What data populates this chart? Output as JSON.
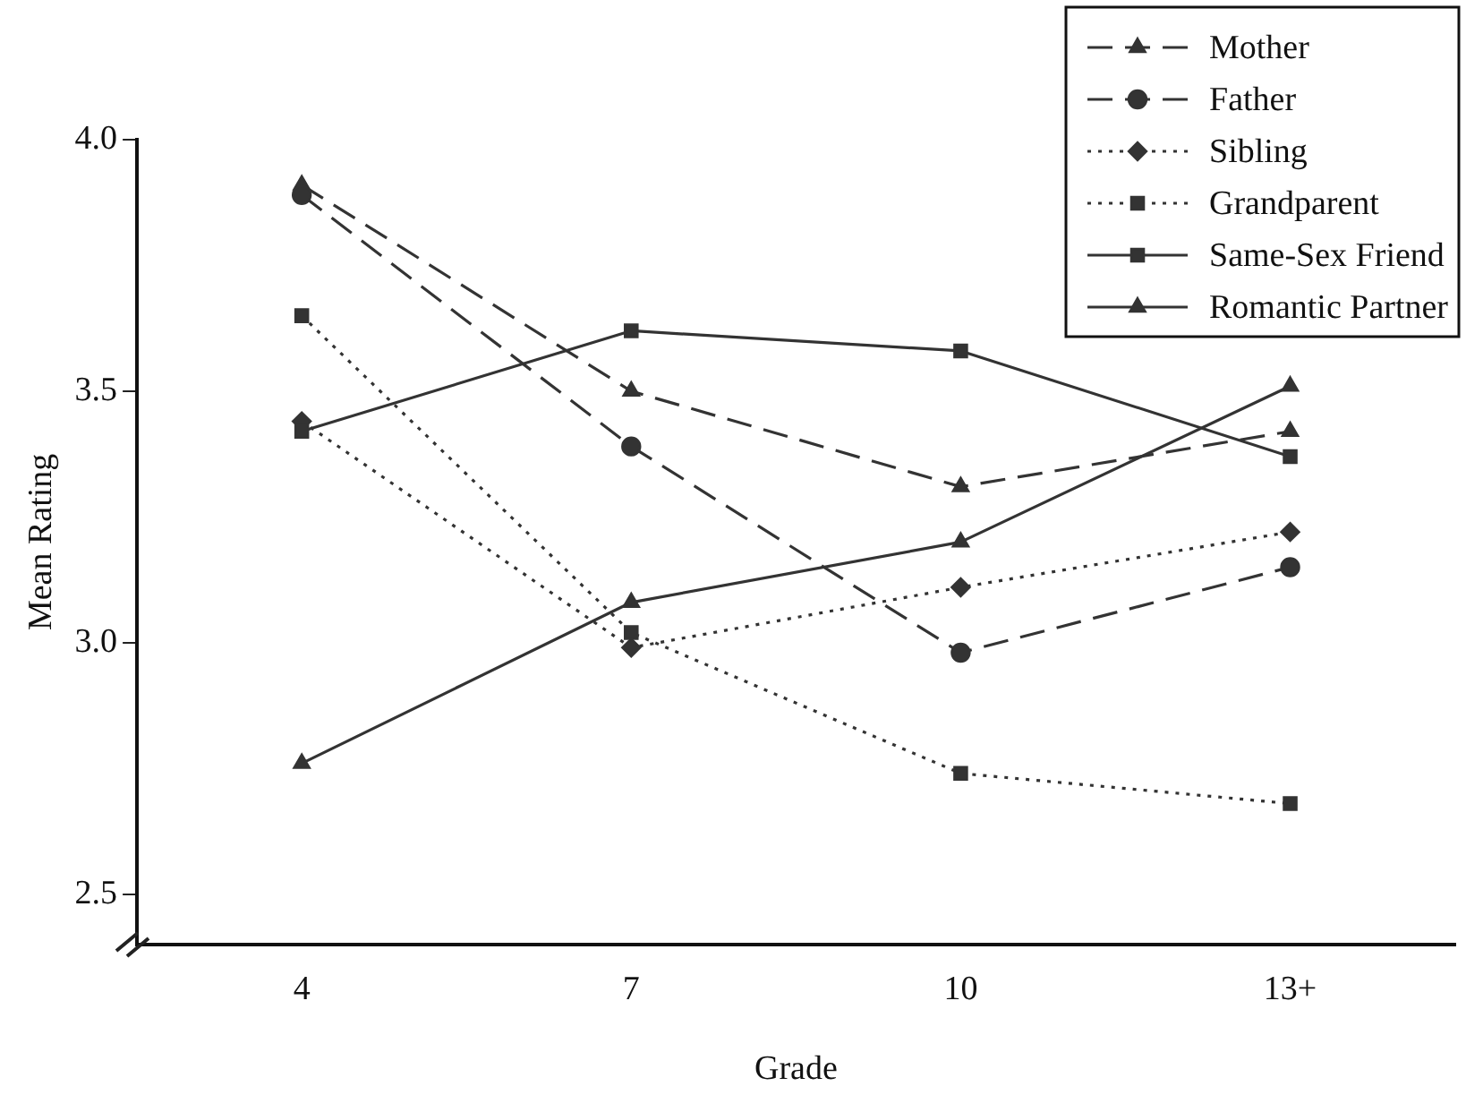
{
  "chart_data": {
    "type": "line",
    "xlabel": "Grade",
    "ylabel": "Mean Rating",
    "categories": [
      "4",
      "7",
      "10",
      "13+"
    ],
    "ylim": [
      2.4,
      4.0
    ],
    "yticks": [
      {
        "value": 2.5,
        "label": "2.5"
      },
      {
        "value": 3,
        "label": "3.0"
      },
      {
        "value": 3.5,
        "label": "3.5"
      },
      {
        "value": 4,
        "label": "4.0"
      }
    ],
    "grid": false,
    "legend": "top right",
    "series": [
      {
        "name": "Mother",
        "color": "#333333",
        "marker": "triangle",
        "line_style": "dashed",
        "values": [
          3.91,
          3.5,
          3.31,
          3.42
        ]
      },
      {
        "name": "Father",
        "color": "#333333",
        "marker": "circle",
        "line_style": "dashed",
        "values": [
          3.89,
          3.39,
          2.98,
          3.15
        ]
      },
      {
        "name": "Sibling",
        "color": "#333333",
        "marker": "diamond",
        "line_style": "dotted",
        "values": [
          3.44,
          2.99,
          3.11,
          3.22
        ]
      },
      {
        "name": "Grandparent",
        "color": "#333333",
        "marker": "square",
        "line_style": "dotted",
        "values": [
          3.65,
          3.02,
          2.74,
          2.68
        ]
      },
      {
        "name": "Same-Sex Friend",
        "color": "#333333",
        "marker": "square",
        "line_style": "solid",
        "values": [
          3.42,
          3.62,
          3.58,
          3.37
        ]
      },
      {
        "name": "Romantic Partner",
        "color": "#333333",
        "marker": "triangle",
        "line_style": "solid",
        "values": [
          2.76,
          3.08,
          3.2,
          3.51
        ]
      }
    ]
  }
}
